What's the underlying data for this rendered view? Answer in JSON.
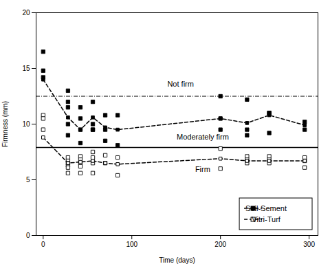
{
  "chart_data": {
    "type": "line",
    "xlabel": "Time (days)",
    "ylabel": "Firmness (mm)",
    "xlim": [
      -8,
      310
    ],
    "ylim": [
      0,
      20
    ],
    "xticks": [
      0,
      100,
      200,
      300
    ],
    "yticks": [
      0,
      5,
      10,
      15,
      20
    ],
    "grid": false,
    "legend": "lower right",
    "series": [
      {
        "type": "scatter",
        "marker": "square",
        "color": "black",
        "x": [
          0,
          0,
          0,
          28,
          28,
          28,
          28,
          28,
          42,
          42,
          42,
          42,
          56,
          56,
          56,
          56,
          70,
          70,
          70,
          84,
          84,
          200,
          200,
          200,
          230,
          230,
          230,
          255,
          255,
          255,
          295,
          295
        ],
        "values": [
          16.5,
          14.8,
          14.2,
          13.0,
          12.0,
          11.5,
          10.0,
          9.0,
          11.5,
          10.5,
          9.5,
          8.3,
          12.0,
          10.0,
          9.5,
          9.5,
          10.8,
          9.5,
          8.5,
          10.8,
          8.1,
          12.5,
          10.5,
          9.5,
          12.2,
          9.5,
          9.0,
          11.0,
          11.0,
          9.2,
          10.2,
          9.5
        ]
      },
      {
        "name": "Soil-Sement",
        "type": "line",
        "line_style": "dashed",
        "marker": "square",
        "color": "black",
        "x": [
          0,
          28,
          42,
          56,
          70,
          84,
          200,
          230,
          255,
          295
        ],
        "values": [
          14.0,
          10.6,
          9.5,
          10.6,
          9.7,
          9.5,
          10.5,
          10.1,
          10.8,
          9.9
        ]
      },
      {
        "type": "scatter",
        "marker": "open_square",
        "color": "black",
        "x": [
          0,
          0,
          0,
          28,
          28,
          28,
          28,
          28,
          28,
          42,
          42,
          42,
          42,
          42,
          56,
          56,
          56,
          56,
          70,
          70,
          84,
          84,
          200,
          200,
          230,
          230,
          230,
          255,
          255,
          255,
          295,
          295,
          295
        ],
        "values": [
          10.8,
          10.5,
          9.5,
          7.0,
          6.7,
          6.5,
          6.3,
          6.1,
          5.6,
          7.1,
          6.8,
          6.5,
          6.2,
          5.6,
          7.5,
          7.0,
          6.5,
          5.6,
          7.2,
          6.5,
          7.0,
          5.4,
          7.8,
          6.0,
          7.1,
          6.8,
          6.5,
          7.1,
          6.8,
          6.5,
          7.0,
          6.7,
          6.1
        ]
      },
      {
        "name": "Vitri-Turf",
        "type": "line",
        "line_style": "dashed",
        "marker": "open_square",
        "color": "black",
        "x": [
          0,
          28,
          42,
          56,
          70,
          84,
          200,
          230,
          255,
          295
        ],
        "values": [
          8.8,
          6.5,
          6.6,
          6.7,
          6.5,
          6.4,
          6.9,
          6.7,
          6.7,
          6.7
        ]
      }
    ],
    "reference_lines": [
      {
        "y": 12.5,
        "line_style": "dashdot",
        "color": "black"
      },
      {
        "y": 7.9,
        "line_style": "solid",
        "color": "black"
      }
    ],
    "annotations": [
      {
        "text": "Not firm",
        "x": 155,
        "y": 13.6
      },
      {
        "text": "Moderately firm",
        "x": 180,
        "y": 8.85
      },
      {
        "text": "Firm",
        "x": 180,
        "y": 5.95
      }
    ]
  }
}
